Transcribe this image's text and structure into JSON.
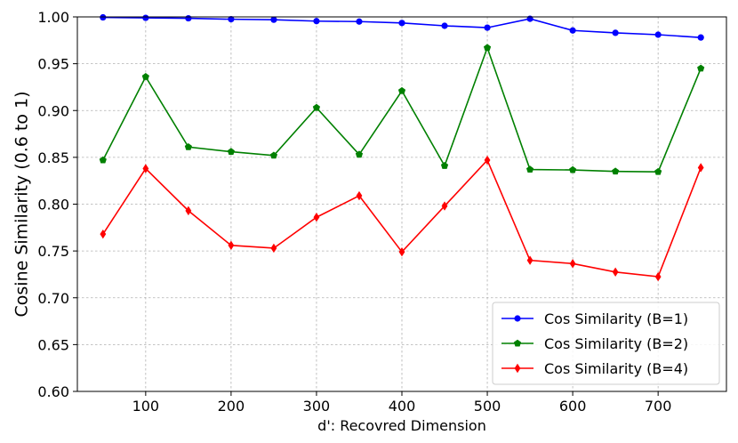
{
  "chart_data": {
    "type": "line",
    "title": "",
    "xlabel": "d': Recovred Dimension",
    "ylabel": "Cosine Similarity (0.6 to 1)",
    "xlim": [
      20,
      780
    ],
    "ylim": [
      0.6,
      1.0
    ],
    "x_ticks": [
      100,
      200,
      300,
      400,
      500,
      600,
      700
    ],
    "y_ticks": [
      0.6,
      0.65,
      0.7,
      0.75,
      0.8,
      0.85,
      0.9,
      0.95,
      1.0
    ],
    "y_tick_labels": [
      "0.60",
      "0.65",
      "0.70",
      "0.75",
      "0.80",
      "0.85",
      "0.90",
      "0.95",
      "1.00"
    ],
    "grid": true,
    "legend_position": "bottom-right",
    "x": [
      50,
      100,
      150,
      200,
      250,
      300,
      350,
      400,
      450,
      500,
      550,
      600,
      650,
      700,
      750
    ],
    "series": [
      {
        "name": "Cos Similarity (B=1)",
        "color": "#0000ff",
        "marker": "circle",
        "values": [
          0.9995,
          0.999,
          0.9985,
          0.9975,
          0.997,
          0.9955,
          0.995,
          0.9935,
          0.9905,
          0.9885,
          0.998,
          0.9855,
          0.983,
          0.981,
          0.978
        ]
      },
      {
        "name": "Cos Similarity (B=2)",
        "color": "#008000",
        "marker": "pentagon",
        "values": [
          0.847,
          0.936,
          0.861,
          0.856,
          0.852,
          0.903,
          0.853,
          0.921,
          0.841,
          0.967,
          0.837,
          0.8365,
          0.835,
          0.8345,
          0.945
        ]
      },
      {
        "name": "Cos Similarity (B=4)",
        "color": "#ff0000",
        "marker": "diamond",
        "values": [
          0.768,
          0.838,
          0.793,
          0.756,
          0.753,
          0.786,
          0.809,
          0.749,
          0.798,
          0.847,
          0.74,
          0.7365,
          0.7275,
          0.7225,
          0.839
        ]
      }
    ]
  }
}
